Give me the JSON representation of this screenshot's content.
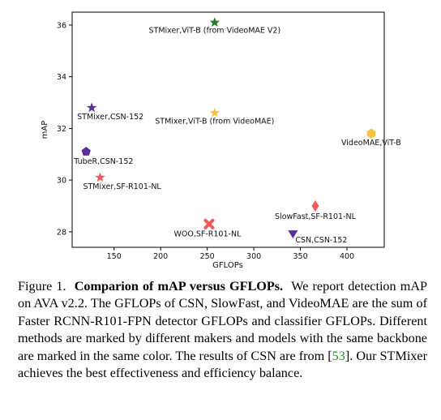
{
  "chart_data": {
    "type": "scatter",
    "xlabel": "GFLOPs",
    "ylabel": "mAP",
    "xlim": [
      105,
      440
    ],
    "ylim": [
      27.4,
      36.5
    ],
    "xticks": [
      150,
      200,
      250,
      300,
      350,
      400
    ],
    "yticks": [
      28,
      30,
      32,
      34,
      36
    ],
    "grid": false,
    "legend": "none",
    "points": [
      {
        "label": "STMixer,ViT-B (from VideoMAE V2)",
        "x": 258,
        "y": 36.1,
        "marker": "star",
        "color": "#1f7a1f"
      },
      {
        "label": "STMixer,CSN-152",
        "x": 126,
        "y": 32.8,
        "marker": "star",
        "color": "#5b2d9a"
      },
      {
        "label": "STMixer,ViT-B (from VideoMAE)",
        "x": 258,
        "y": 32.6,
        "marker": "star",
        "color": "#f5c242"
      },
      {
        "label": "VideoMAE,ViT-B",
        "x": 426,
        "y": 31.8,
        "marker": "hexagon",
        "color": "#f5c242"
      },
      {
        "label": "TubeR,CSN-152",
        "x": 120,
        "y": 31.1,
        "marker": "pentagon",
        "color": "#5b2d9a"
      },
      {
        "label": "STMixer,SF-R101-NL",
        "x": 135,
        "y": 30.1,
        "marker": "star",
        "color": "#f05a5a"
      },
      {
        "label": "SlowFast,SF-R101-NL",
        "x": 366,
        "y": 29.0,
        "marker": "diamond",
        "color": "#f05a5a"
      },
      {
        "label": "WOO,SF-R101-NL",
        "x": 252,
        "y": 28.3,
        "marker": "x",
        "color": "#f05a5a"
      },
      {
        "label": "CSN,CSN-152",
        "x": 342,
        "y": 27.9,
        "marker": "triangle-down",
        "color": "#5b2d9a"
      }
    ]
  },
  "caption": {
    "prefix": "Figure 1.",
    "title": "Comparion of mAP versus GFLOPs.",
    "body1": "We report detection mAP on AVA v2.2. The GFLOPs of CSN, SlowFast, and VideoMAE are the sum of Faster RCNN-R101-FPN detector GFLOPs and classifier GFLOPs. Different methods are marked by different makers and models with the same backbone are marked in the same color. The results of CSN are from [",
    "ref": "53",
    "body2": "]. Our STMixer achieves the best effectiveness and efficiency balance."
  }
}
